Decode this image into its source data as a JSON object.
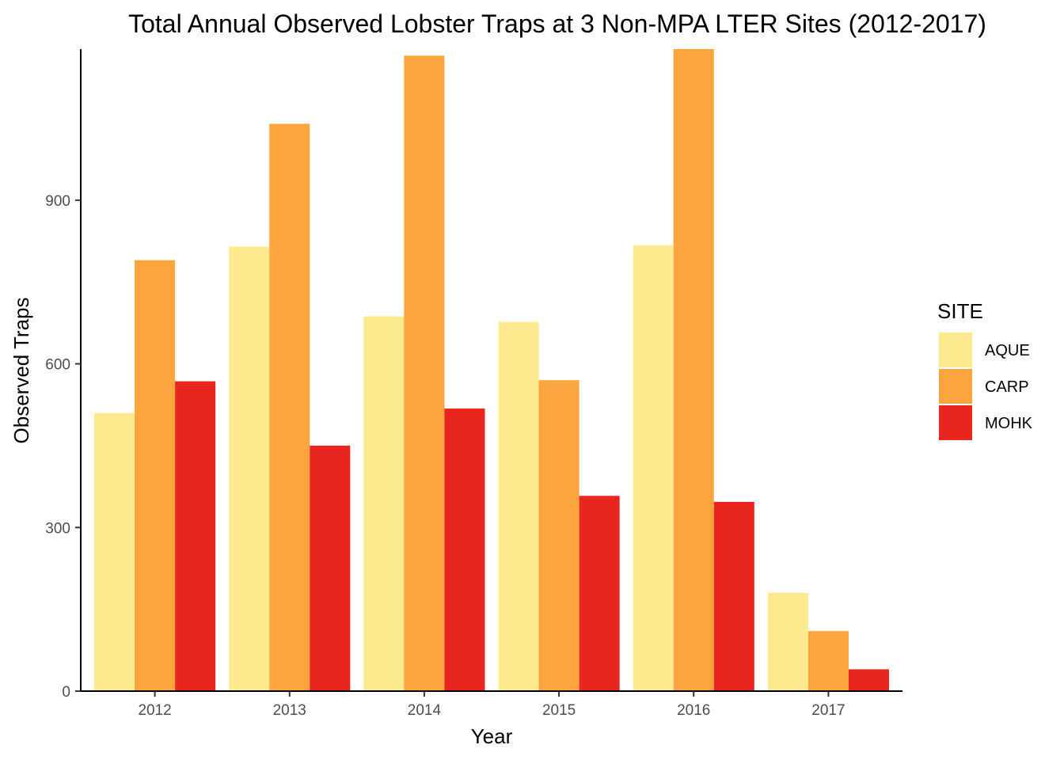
{
  "chart_data": {
    "type": "bar",
    "title": "Total Annual Observed Lobster Traps at 3 Non-MPA LTER Sites (2012-2017)",
    "xlabel": "Year",
    "ylabel": "Observed Traps",
    "categories": [
      "2012",
      "2013",
      "2014",
      "2015",
      "2016",
      "2017"
    ],
    "series": [
      {
        "name": "AQUE",
        "color": "#FDE98E",
        "values": [
          510,
          815,
          687,
          677,
          817,
          180
        ]
      },
      {
        "name": "CARP",
        "color": "#FCA43D",
        "values": [
          790,
          1040,
          1165,
          570,
          1177,
          110
        ]
      },
      {
        "name": "MOHK",
        "color": "#E8251E",
        "values": [
          568,
          450,
          518,
          358,
          347,
          40
        ]
      }
    ],
    "ylim": [
      0,
      1177
    ],
    "yticks": [
      0,
      300,
      600,
      900
    ],
    "grid": false,
    "legend": {
      "title": "SITE",
      "position": "right"
    }
  }
}
